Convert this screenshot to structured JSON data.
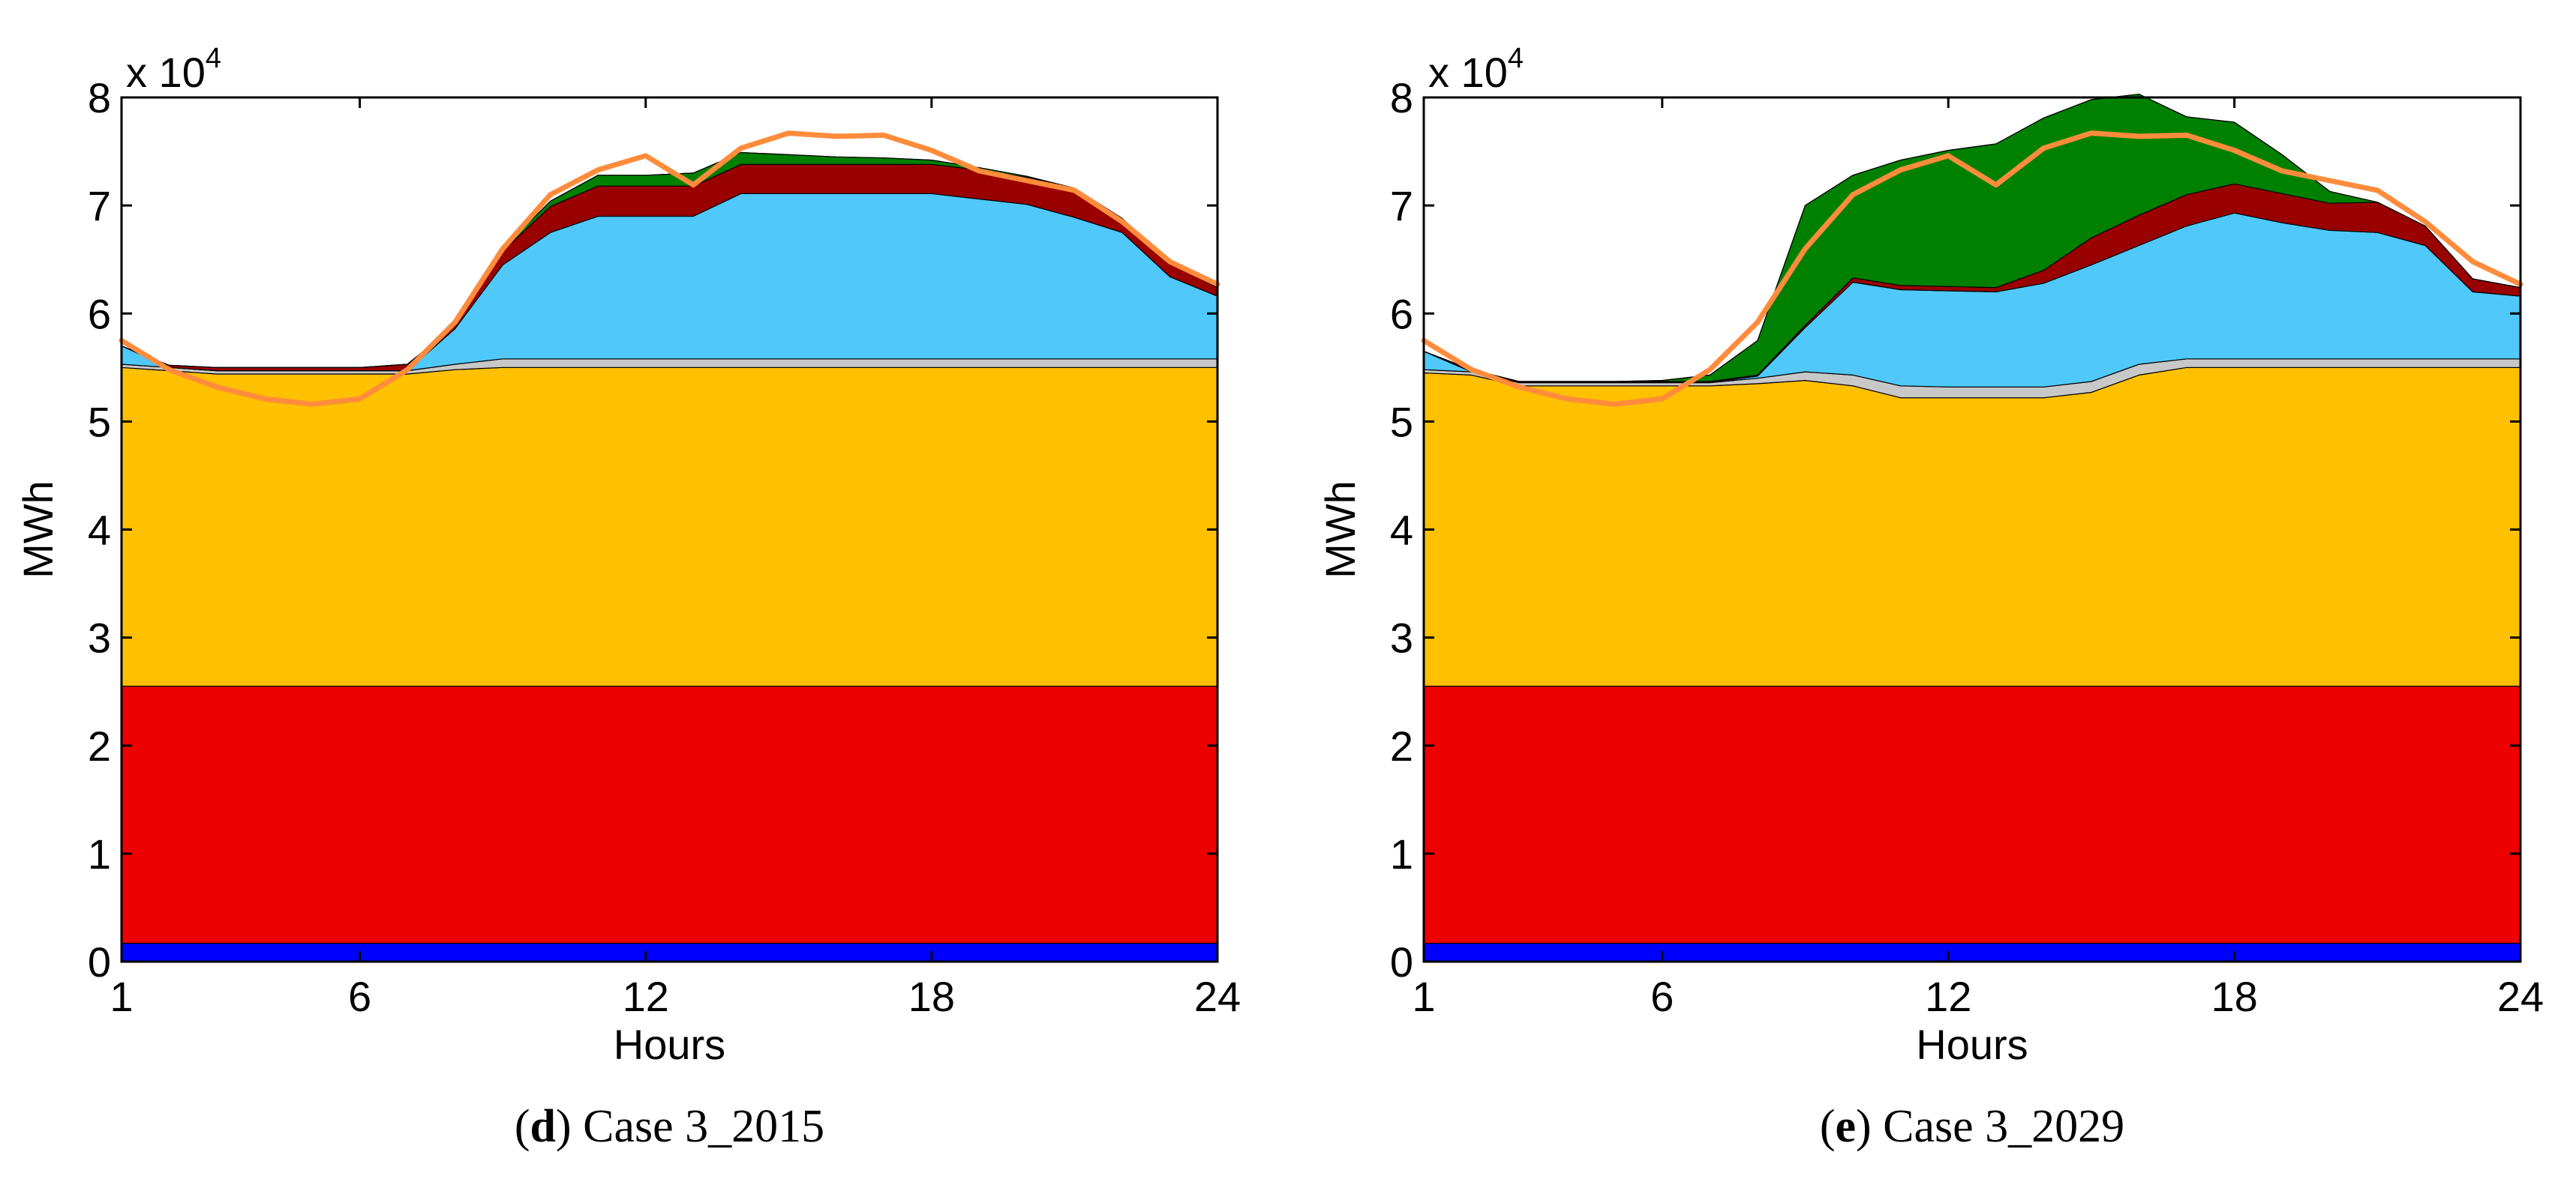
{
  "chart_data": [
    {
      "type": "area",
      "caption_letter": "d",
      "caption_text": "Case 3_2015",
      "xlabel": "Hours",
      "ylabel": "MWh",
      "y_exponent_label": "x 10",
      "y_exponent_power": "4",
      "xlim": [
        1,
        24
      ],
      "ylim": [
        0,
        80000
      ],
      "x_ticks": [
        1,
        6,
        12,
        18,
        24
      ],
      "y_ticks": [
        0,
        10000,
        20000,
        30000,
        40000,
        50000,
        60000,
        70000,
        80000
      ],
      "y_tick_labels": [
        "0",
        "1",
        "2",
        "3",
        "4",
        "5",
        "6",
        "7",
        "8"
      ],
      "stacked": true,
      "x": [
        1,
        2,
        3,
        4,
        5,
        6,
        7,
        8,
        9,
        10,
        11,
        12,
        13,
        14,
        15,
        16,
        17,
        18,
        19,
        20,
        21,
        22,
        23,
        24
      ],
      "series": [
        {
          "name": "layer-blue",
          "color": "#0000ff",
          "values": [
            1700,
            1700,
            1700,
            1700,
            1700,
            1700,
            1700,
            1700,
            1700,
            1700,
            1700,
            1700,
            1700,
            1700,
            1700,
            1700,
            1700,
            1700,
            1700,
            1700,
            1700,
            1700,
            1700,
            1700
          ]
        },
        {
          "name": "layer-red",
          "color": "#ee0000",
          "values": [
            23800,
            23800,
            23800,
            23800,
            23800,
            23800,
            23800,
            23800,
            23800,
            23800,
            23800,
            23800,
            23800,
            23800,
            23800,
            23800,
            23800,
            23800,
            23800,
            23800,
            23800,
            23800,
            23800,
            23800
          ]
        },
        {
          "name": "layer-orange",
          "color": "#ffc000",
          "values": [
            29500,
            29200,
            28900,
            28900,
            28900,
            28900,
            28900,
            29300,
            29500,
            29500,
            29500,
            29500,
            29500,
            29500,
            29500,
            29500,
            29500,
            29500,
            29500,
            29500,
            29500,
            29500,
            29500,
            29500
          ]
        },
        {
          "name": "layer-gray",
          "color": "#c8c8c8",
          "values": [
            300,
            300,
            300,
            300,
            300,
            300,
            300,
            500,
            800,
            800,
            800,
            800,
            800,
            800,
            800,
            800,
            800,
            800,
            800,
            800,
            800,
            800,
            800,
            800
          ]
        },
        {
          "name": "layer-cyan",
          "color": "#50c8fa",
          "values": [
            1700,
            0,
            0,
            0,
            0,
            0,
            0,
            3300,
            8700,
            11700,
            13200,
            13200,
            13200,
            15300,
            15300,
            15300,
            15300,
            15300,
            14800,
            14300,
            13100,
            11700,
            7600,
            5800
          ]
        },
        {
          "name": "layer-darkred",
          "color": "#990000",
          "values": [
            0,
            200,
            300,
            300,
            300,
            300,
            600,
            300,
            1300,
            2400,
            2800,
            2800,
            2800,
            2700,
            2700,
            2700,
            2700,
            2700,
            2700,
            2500,
            2700,
            1300,
            1300,
            800
          ]
        },
        {
          "name": "layer-green",
          "color": "#008000",
          "values": [
            0,
            0,
            0,
            0,
            0,
            0,
            0,
            0,
            200,
            500,
            1000,
            1000,
            1200,
            1100,
            900,
            700,
            600,
            400,
            200,
            100,
            0,
            0,
            0,
            0
          ]
        },
        {
          "name": "layer-black",
          "color": "#000000",
          "values": [
            0,
            0,
            0,
            0,
            0,
            0,
            0,
            0,
            0,
            0,
            0,
            0,
            0,
            0,
            0,
            0,
            0,
            0,
            0,
            0,
            0,
            0,
            0,
            0
          ]
        }
      ],
      "demand_line": {
        "name": "demand",
        "color": "#ff8c3c",
        "values": [
          57500,
          54800,
          53200,
          52100,
          51600,
          52100,
          54800,
          59200,
          66000,
          71000,
          73300,
          74600,
          71900,
          75300,
          76700,
          76400,
          76500,
          75100,
          73200,
          72300,
          71400,
          68500,
          64800,
          62700
        ]
      }
    },
    {
      "type": "area",
      "caption_letter": "e",
      "caption_text": "Case 3_2029",
      "xlabel": "Hours",
      "ylabel": "MWh",
      "y_exponent_label": "x 10",
      "y_exponent_power": "4",
      "xlim": [
        1,
        24
      ],
      "ylim": [
        0,
        80000
      ],
      "x_ticks": [
        1,
        6,
        12,
        18,
        24
      ],
      "y_ticks": [
        0,
        10000,
        20000,
        30000,
        40000,
        50000,
        60000,
        70000,
        80000
      ],
      "y_tick_labels": [
        "0",
        "1",
        "2",
        "3",
        "4",
        "5",
        "6",
        "7",
        "8"
      ],
      "stacked": true,
      "x": [
        1,
        2,
        3,
        4,
        5,
        6,
        7,
        8,
        9,
        10,
        11,
        12,
        13,
        14,
        15,
        16,
        17,
        18,
        19,
        20,
        21,
        22,
        23,
        24
      ],
      "series": [
        {
          "name": "layer-blue",
          "color": "#0000ff",
          "values": [
            1700,
            1700,
            1700,
            1700,
            1700,
            1700,
            1700,
            1700,
            1700,
            1700,
            1700,
            1700,
            1700,
            1700,
            1700,
            1700,
            1700,
            1700,
            1700,
            1700,
            1700,
            1700,
            1700,
            1700
          ]
        },
        {
          "name": "layer-red",
          "color": "#ee0000",
          "values": [
            23800,
            23800,
            23800,
            23800,
            23800,
            23800,
            23800,
            23800,
            23800,
            23800,
            23800,
            23800,
            23800,
            23800,
            23800,
            23800,
            23800,
            23800,
            23800,
            23800,
            23800,
            23800,
            23800,
            23800
          ]
        },
        {
          "name": "layer-orange",
          "color": "#ffc000",
          "values": [
            29000,
            28800,
            27800,
            27800,
            27800,
            27800,
            27800,
            28000,
            28300,
            27800,
            26700,
            26700,
            26700,
            26700,
            27200,
            28800,
            29500,
            29500,
            29500,
            29500,
            29500,
            29500,
            29500,
            29500
          ]
        },
        {
          "name": "layer-gray",
          "color": "#c8c8c8",
          "values": [
            300,
            300,
            300,
            300,
            300,
            300,
            300,
            500,
            800,
            1000,
            1100,
            1000,
            1000,
            1000,
            1000,
            1000,
            800,
            800,
            800,
            800,
            800,
            800,
            800,
            800
          ]
        },
        {
          "name": "layer-cyan",
          "color": "#50c8fa",
          "values": [
            1700,
            0,
            0,
            0,
            0,
            0,
            0,
            200,
            4100,
            8600,
            8900,
            8900,
            8800,
            9600,
            10800,
            11000,
            12300,
            13500,
            12600,
            11900,
            11700,
            10500,
            6200,
            5800
          ]
        },
        {
          "name": "layer-darkred",
          "color": "#990000",
          "values": [
            0,
            200,
            100,
            100,
            100,
            100,
            100,
            100,
            200,
            400,
            400,
            400,
            400,
            1200,
            2500,
            2800,
            2900,
            2700,
            2700,
            2500,
            2800,
            1800,
            1200,
            800
          ]
        },
        {
          "name": "layer-green",
          "color": "#008000",
          "values": [
            0,
            0,
            0,
            0,
            0,
            100,
            600,
            3200,
            11100,
            9500,
            11600,
            12600,
            13300,
            14100,
            12800,
            11200,
            7200,
            5700,
            3600,
            1100,
            0,
            0,
            0,
            0
          ]
        },
        {
          "name": "layer-black",
          "color": "#000000",
          "values": [
            0,
            0,
            0,
            0,
            0,
            0,
            0,
            0,
            0,
            0,
            0,
            0,
            0,
            0,
            0,
            0,
            0,
            0,
            0,
            0,
            0,
            0,
            0,
            0
          ]
        }
      ],
      "demand_line": {
        "name": "demand",
        "color": "#ff8c3c",
        "values": [
          57500,
          54800,
          53200,
          52100,
          51600,
          52100,
          54800,
          59200,
          66000,
          71000,
          73300,
          74600,
          71900,
          75300,
          76700,
          76400,
          76500,
          75100,
          73200,
          72300,
          71400,
          68500,
          64800,
          62700
        ]
      }
    }
  ]
}
